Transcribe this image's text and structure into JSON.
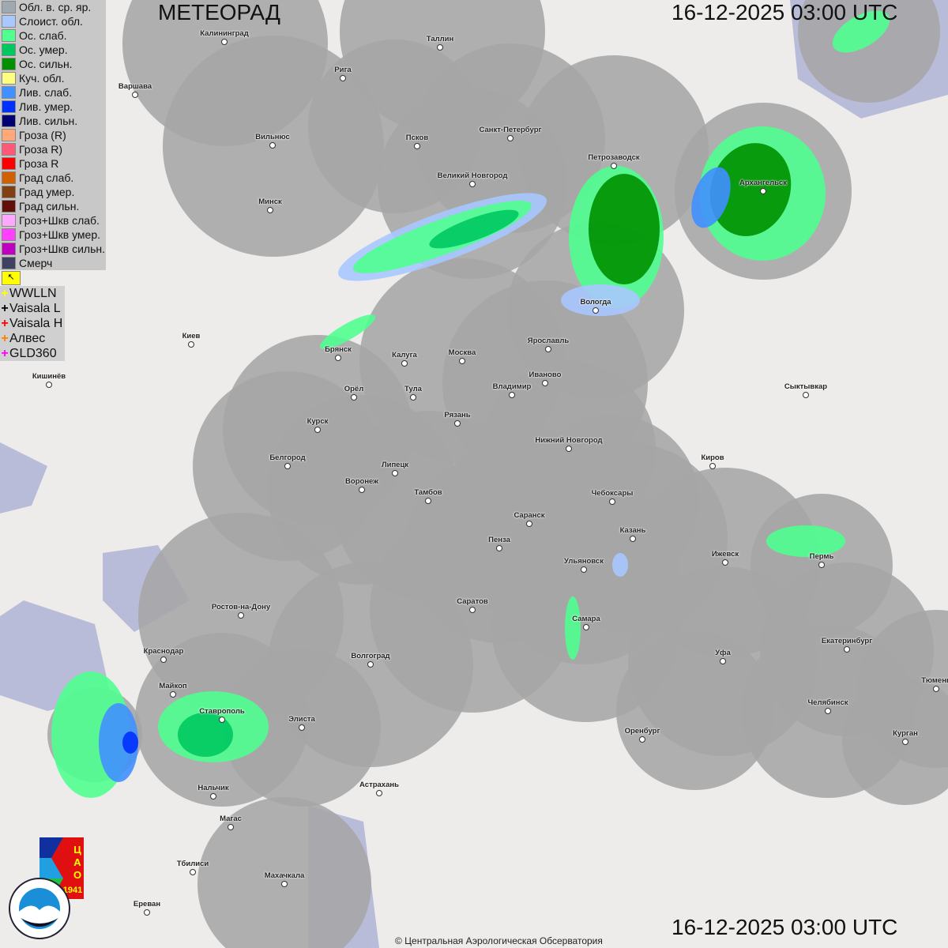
{
  "header": {
    "title": "МЕТЕОРАД",
    "datetime_top": "16-12-2025  03:00 UTC",
    "datetime_bottom": "16-12-2025  03:00 UTC"
  },
  "legend": {
    "items": [
      {
        "label": "Обл. в. ср. яр.",
        "color": "#a0a8b0"
      },
      {
        "label": "Слоист. обл.",
        "color": "#a8c8ff"
      },
      {
        "label": "Ос. слаб.",
        "color": "#50ff90"
      },
      {
        "label": "Ос. умер.",
        "color": "#00c860"
      },
      {
        "label": "Ос. сильн.",
        "color": "#009000"
      },
      {
        "label": "Куч. обл.",
        "color": "#ffff80"
      },
      {
        "label": "Лив. слаб.",
        "color": "#4090ff"
      },
      {
        "label": "Лив. умер.",
        "color": "#0030ff"
      },
      {
        "label": "Лив. сильн.",
        "color": "#000070"
      },
      {
        "label": "Гроза (R)",
        "color": "#ffa878"
      },
      {
        "label": "Гроза R)",
        "color": "#ff5878"
      },
      {
        "label": "Гроза R",
        "color": "#ff0000"
      },
      {
        "label": "Град слаб.",
        "color": "#d06000"
      },
      {
        "label": "Град умер.",
        "color": "#804010"
      },
      {
        "label": "Град сильн.",
        "color": "#601008"
      },
      {
        "label": "Гроз+Шкв слаб.",
        "color": "#ffa8ff"
      },
      {
        "label": "Гроз+Шкв умер.",
        "color": "#ff40ff"
      },
      {
        "label": "Гроз+Шкв сильн.",
        "color": "#c000c0"
      },
      {
        "label": "Смерч",
        "color": "#404060"
      }
    ]
  },
  "lightning": {
    "items": [
      {
        "label": "WWLLN",
        "color": "#ffff00"
      },
      {
        "label": "Vaisala L",
        "color": "#000000"
      },
      {
        "label": "Vaisala H",
        "color": "#ff0000"
      },
      {
        "label": "Алвес",
        "color": "#ff8000"
      },
      {
        "label": "GLD360",
        "color": "#ff00ff"
      }
    ]
  },
  "cities": [
    "Калининград",
    "Таллин",
    "Рига",
    "Варшава",
    "Санкт-Петербург",
    "Псков",
    "Вильнюс",
    "Петрозаводск",
    "Архангельск",
    "Великий Новгород",
    "Минск",
    "Вологда",
    "Ярославль",
    "Киев",
    "Брянск",
    "Калуга",
    "Москва",
    "Иваново",
    "Кишинёв",
    "Орёл",
    "Тула",
    "Владимир",
    "Сыктывкар",
    "Рязань",
    "Курск",
    "Нижний Новгород",
    "Белгород",
    "Киров",
    "Липецк",
    "Воронеж",
    "Тамбов",
    "Чебоксары",
    "Саранск",
    "Пенза",
    "Казань",
    "Ижевск",
    "Пермь",
    "Ульяновск",
    "Ростов-на-Дону",
    "Саратов",
    "Самара",
    "Краснодар",
    "Волгоград",
    "Уфа",
    "Екатеринбург",
    "Тюмень",
    "Майкоп",
    "Ставрополь",
    "Челябинск",
    "Элиста",
    "Оренбург",
    "Курган",
    "Астрахань",
    "Нальчик",
    "Магас",
    "Тбилиси",
    "Махачкала",
    "Ереван"
  ],
  "logos": {
    "cao": "ЦАО 1941",
    "roshydromet": "РОСГИДРОМЕТ ROSHYDROMET"
  },
  "footer": {
    "copyright": "© Центральная Аэрологическая Обсерватория"
  }
}
